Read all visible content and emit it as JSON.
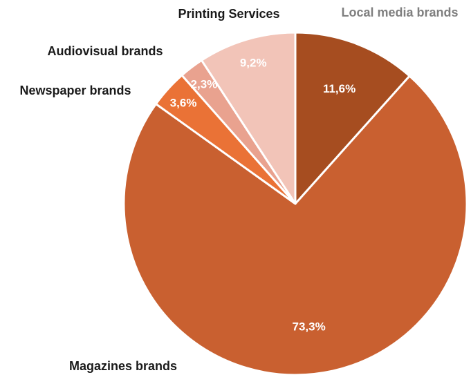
{
  "chart_data": {
    "type": "pie",
    "slices": [
      {
        "label": "Local media brands",
        "value": 11.6,
        "value_label": "11,6%",
        "color": "#A64D20"
      },
      {
        "label": "Magazines brands",
        "value": 73.3,
        "value_label": "73,3%",
        "color": "#C96030"
      },
      {
        "label": "Newspaper brands",
        "value": 3.6,
        "value_label": "3,6%",
        "color": "#EA7236"
      },
      {
        "label": "Audiovisual brands",
        "value": 2.3,
        "value_label": "2,3%",
        "color": "#E9A28F"
      },
      {
        "label": "Printing Services",
        "value": 9.2,
        "value_label": "9,2%",
        "color": "#F2C4B8"
      }
    ],
    "start_angle": "12 o'clock",
    "direction": "clockwise"
  }
}
